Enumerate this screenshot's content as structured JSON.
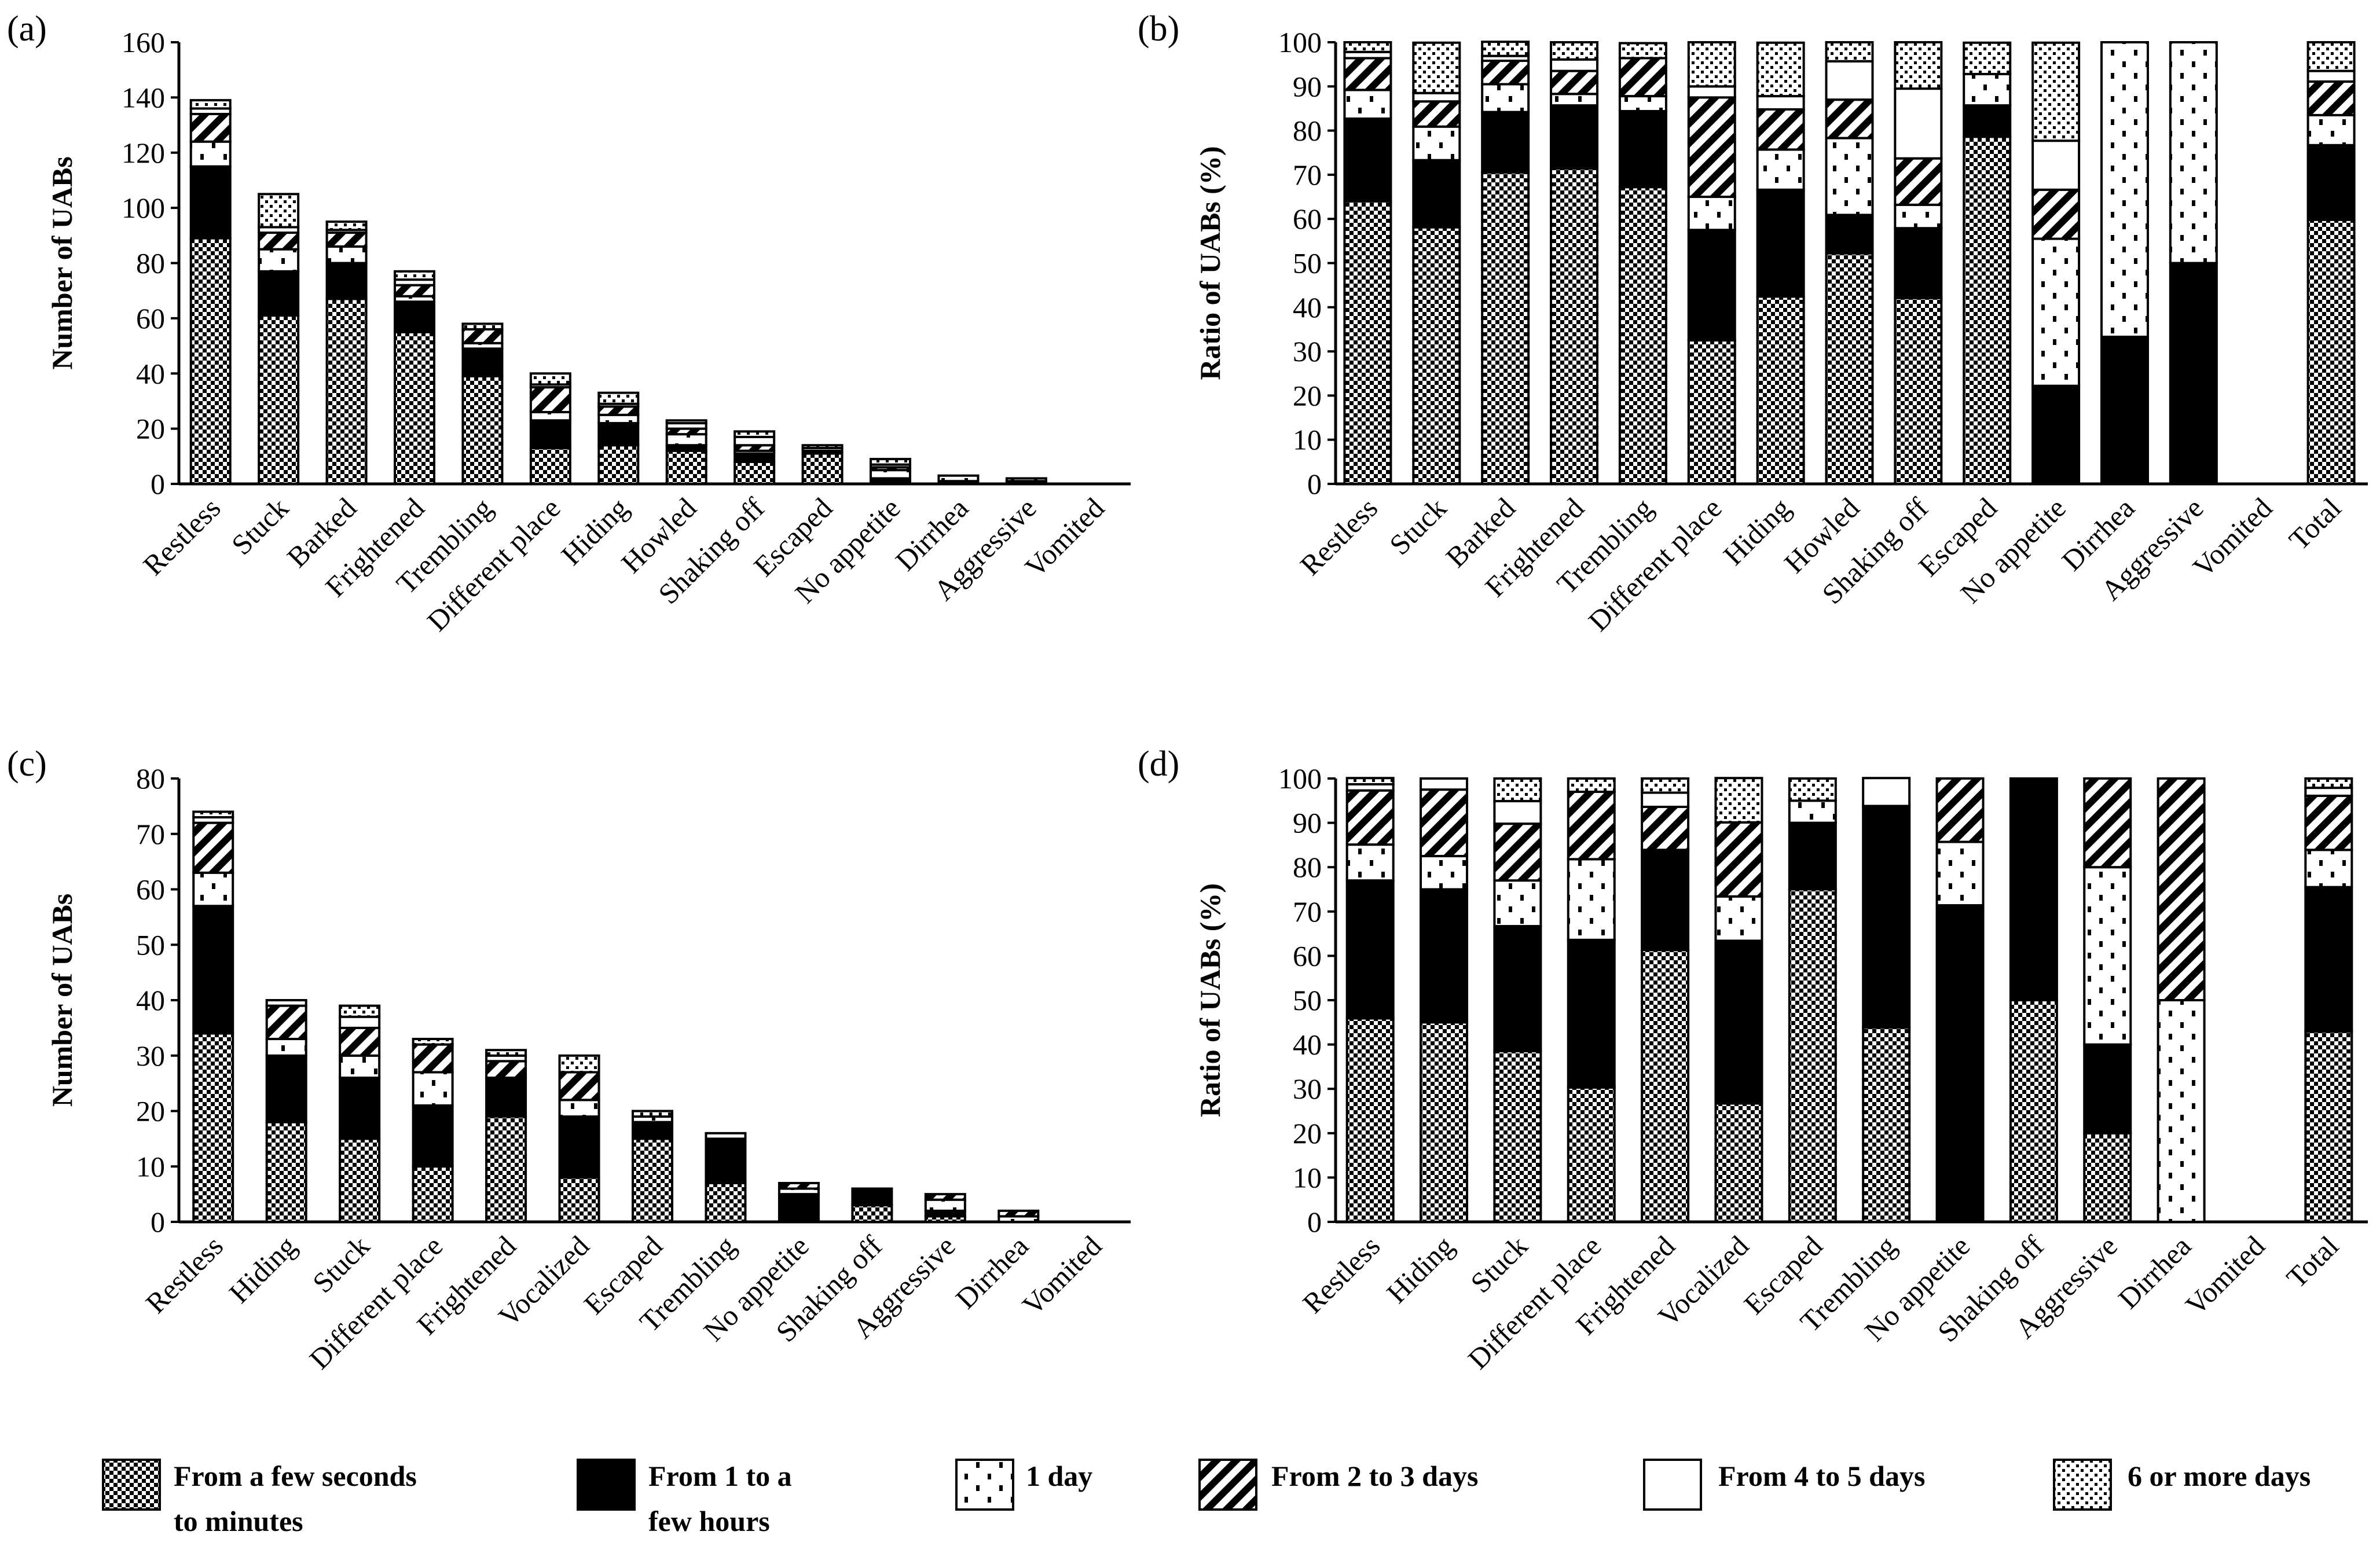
{
  "legend": [
    {
      "lines": [
        "From a few seconds",
        "to minutes"
      ],
      "pattern": "checker"
    },
    {
      "lines": [
        "From 1 to a",
        "few hours"
      ],
      "pattern": "solid"
    },
    {
      "lines": [
        "1 day"
      ],
      "pattern": "dots"
    },
    {
      "lines": [
        "From 2 to 3  days"
      ],
      "pattern": "stripes"
    },
    {
      "lines": [
        "From 4 to 5 days"
      ],
      "pattern": "white"
    },
    {
      "lines": [
        "6 or more days"
      ],
      "pattern": "densedots"
    }
  ],
  "chart_data": [
    {
      "id": "a",
      "panel_label": "(a)",
      "type": "bar",
      "stacked": true,
      "ylabel": "Number of UABs",
      "ylim": [
        0,
        160
      ],
      "yticks": [
        0,
        20,
        40,
        60,
        80,
        100,
        120,
        140,
        160
      ],
      "categories": [
        "Restless",
        "Stuck",
        "Barked",
        "Frightened",
        "Trembling",
        "Different place",
        "Hiding",
        "Howled",
        "Shaking off",
        "Escaped",
        "No appetite",
        "Dirrhea",
        "Aggressive",
        "Vomited"
      ],
      "series": [
        {
          "name": "From a few seconds to minutes",
          "values": [
            89,
            61,
            67,
            55,
            39,
            13,
            14,
            12,
            8,
            11,
            0,
            0,
            0,
            0
          ]
        },
        {
          "name": "From 1 to a few hours",
          "values": [
            26,
            16,
            13,
            11,
            10,
            10,
            8,
            2,
            3,
            1,
            2,
            1,
            1,
            0
          ]
        },
        {
          "name": "1 day",
          "values": [
            9,
            8,
            6,
            2,
            2,
            3,
            3,
            4,
            1,
            1,
            3,
            2,
            1,
            0
          ]
        },
        {
          "name": "From 2 to 3 days",
          "values": [
            10,
            6,
            5,
            4,
            5,
            9,
            3,
            2,
            2,
            0,
            1,
            0,
            0,
            0
          ]
        },
        {
          "name": "From 4 to 5 days",
          "values": [
            2,
            2,
            1,
            2,
            0,
            1,
            1,
            2,
            3,
            0,
            1,
            0,
            0,
            0
          ]
        },
        {
          "name": "6 or more days",
          "values": [
            3,
            12,
            3,
            3,
            2,
            4,
            4,
            1,
            2,
            1,
            2,
            0,
            0,
            0
          ]
        }
      ]
    },
    {
      "id": "b",
      "panel_label": "(b)",
      "type": "bar",
      "stacked": true,
      "percent": true,
      "ylabel": "Ratio of UABs (%)",
      "ylim": [
        0,
        100
      ],
      "yticks": [
        0,
        10,
        20,
        30,
        40,
        50,
        60,
        70,
        80,
        90,
        100
      ],
      "categories": [
        "Restless",
        "Stuck",
        "Barked",
        "Frightened",
        "Trembling",
        "Different place",
        "Hiding",
        "Howled",
        "Shaking off",
        "Escaped",
        "No appetite",
        "Dirrhea",
        "Aggressive",
        "Vomited",
        "Total"
      ],
      "series": [
        {
          "name": "From a few seconds to minutes",
          "values": [
            64.0,
            58.1,
            70.5,
            71.4,
            67.2,
            32.5,
            42.4,
            52.2,
            42.1,
            78.6,
            0,
            0,
            0,
            0,
            59.8
          ]
        },
        {
          "name": "From 1 to a few hours",
          "values": [
            18.7,
            15.2,
            13.7,
            14.3,
            17.2,
            25.0,
            24.2,
            8.7,
            15.8,
            7.1,
            22.2,
            33.3,
            50.0,
            0,
            16.9
          ]
        },
        {
          "name": "1 day",
          "values": [
            6.5,
            7.6,
            6.3,
            2.6,
            3.4,
            7.5,
            9.1,
            17.4,
            5.3,
            7.1,
            33.3,
            66.7,
            50.0,
            0,
            6.8
          ]
        },
        {
          "name": "From 2 to 3 days",
          "values": [
            7.2,
            5.7,
            5.3,
            5.2,
            8.6,
            22.5,
            9.1,
            8.7,
            10.5,
            0,
            11.1,
            0,
            0,
            0,
            7.6
          ]
        },
        {
          "name": "From 4 to 5 days",
          "values": [
            1.4,
            1.9,
            1.1,
            2.6,
            0,
            2.5,
            3.0,
            8.7,
            15.8,
            0,
            11.1,
            0,
            0,
            0,
            2.4
          ]
        },
        {
          "name": "6 or more days",
          "values": [
            2.2,
            11.4,
            3.2,
            3.9,
            3.4,
            10.0,
            12.1,
            4.3,
            10.5,
            7.1,
            22.2,
            0,
            0,
            0,
            6.5
          ]
        }
      ]
    },
    {
      "id": "c",
      "panel_label": "(c)",
      "type": "bar",
      "stacked": true,
      "ylabel": "Number of UABs",
      "ylim": [
        0,
        80
      ],
      "yticks": [
        0,
        10,
        20,
        30,
        40,
        50,
        60,
        70,
        80
      ],
      "categories": [
        "Restless",
        "Hiding",
        "Stuck",
        "Different place",
        "Frightened",
        "Vocalized",
        "Escaped",
        "Trembling",
        "No appetite",
        "Shaking off",
        "Aggressive",
        "Dirrhea",
        "Vomited"
      ],
      "series": [
        {
          "name": "From a few seconds to minutes",
          "values": [
            34,
            18,
            15,
            10,
            19,
            8,
            15,
            7,
            0,
            3,
            1,
            0,
            0
          ]
        },
        {
          "name": "From 1 to a few hours",
          "values": [
            23,
            12,
            11,
            11,
            7,
            11,
            3,
            8,
            5,
            3,
            1,
            0,
            0
          ]
        },
        {
          "name": "1 day",
          "values": [
            6,
            3,
            4,
            6,
            0,
            3,
            1,
            0,
            1,
            0,
            2,
            1,
            0
          ]
        },
        {
          "name": "From 2 to 3 days",
          "values": [
            9,
            6,
            5,
            5,
            3,
            5,
            0,
            0,
            1,
            0,
            1,
            1,
            0
          ]
        },
        {
          "name": "From 4 to 5 days",
          "values": [
            1,
            1,
            2,
            0,
            1,
            0,
            0,
            1,
            0,
            0,
            0,
            0,
            0
          ]
        },
        {
          "name": "6 or more days",
          "values": [
            1,
            0,
            2,
            1,
            1,
            3,
            1,
            0,
            0,
            0,
            0,
            0,
            0
          ]
        }
      ]
    },
    {
      "id": "d",
      "panel_label": "(d)",
      "type": "bar",
      "stacked": true,
      "percent": true,
      "ylabel": "Ratio of UABs (%)",
      "ylim": [
        0,
        100
      ],
      "yticks": [
        0,
        10,
        20,
        30,
        40,
        50,
        60,
        70,
        80,
        90,
        100
      ],
      "categories": [
        "Restless",
        "Hiding",
        "Stuck",
        "Different place",
        "Frightened",
        "Vocalized",
        "Escaped",
        "Trembling",
        "No appetite",
        "Shaking off",
        "Aggressive",
        "Dirrhea",
        "Vomited",
        "Total"
      ],
      "series": [
        {
          "name": "From a few seconds to minutes",
          "values": [
            45.9,
            45.0,
            38.5,
            30.3,
            61.3,
            26.7,
            75.0,
            43.8,
            0,
            50.0,
            20.0,
            0,
            0,
            42.9
          ]
        },
        {
          "name": "From 1 to a few hours",
          "values": [
            31.1,
            30.0,
            28.2,
            33.3,
            22.6,
            36.7,
            15.0,
            50.0,
            71.4,
            50.0,
            20.0,
            0,
            0,
            32.6
          ]
        },
        {
          "name": "1 day",
          "values": [
            8.1,
            7.5,
            10.3,
            18.2,
            0,
            10.0,
            5.0,
            0,
            14.3,
            0,
            40.0,
            50.0,
            0,
            8.4
          ]
        },
        {
          "name": "From 2 to 3 days",
          "values": [
            12.2,
            15.0,
            12.8,
            15.2,
            9.7,
            16.7,
            0,
            0,
            14.3,
            0,
            20.0,
            50.0,
            0,
            12.2
          ]
        },
        {
          "name": "From 4 to 5 days",
          "values": [
            1.4,
            2.5,
            5.1,
            0,
            3.2,
            0,
            0,
            6.3,
            0,
            0,
            0,
            0,
            0,
            1.8
          ]
        },
        {
          "name": "6 or more days",
          "values": [
            1.4,
            0,
            5.1,
            3.0,
            3.2,
            10.0,
            5.0,
            0,
            0,
            0,
            0,
            0,
            0,
            2.1
          ]
        }
      ]
    }
  ]
}
